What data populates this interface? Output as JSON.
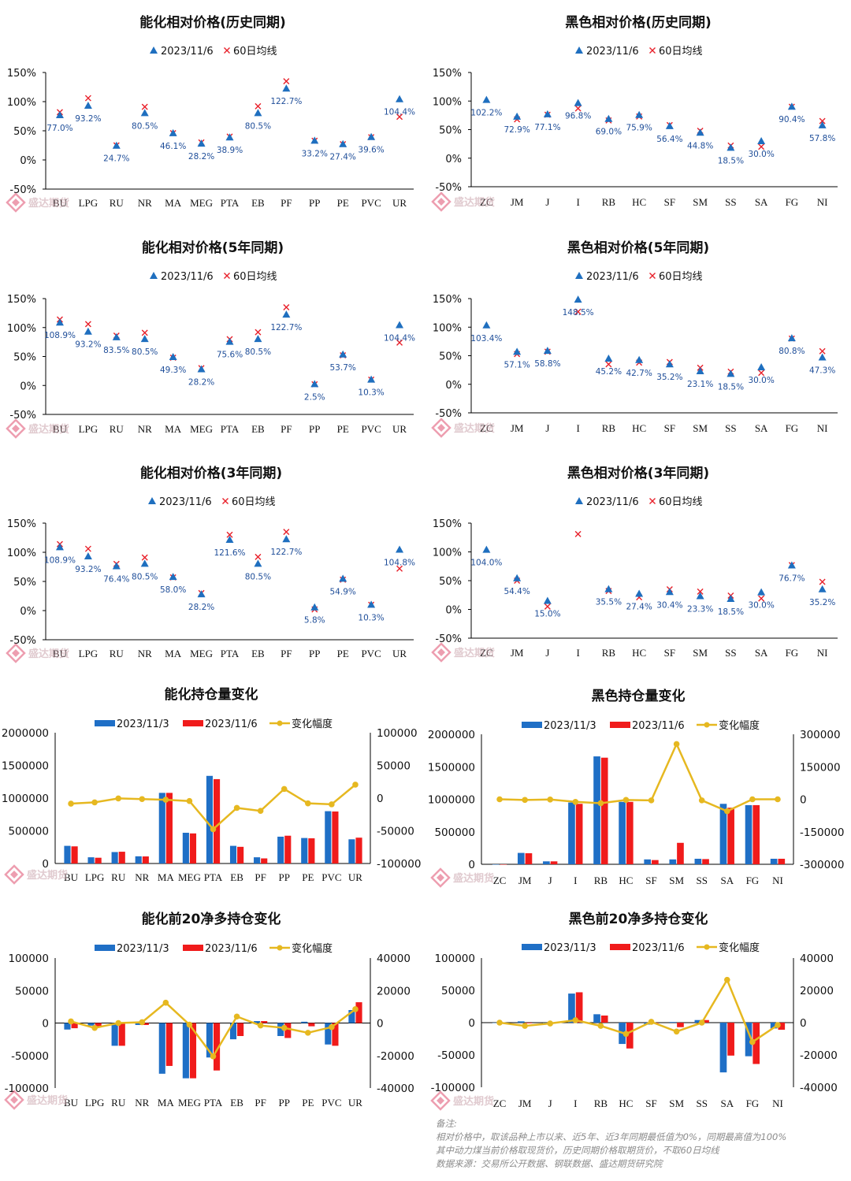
{
  "watermark": "盛达期货",
  "legend_markers": {
    "date_label": "2023/11/6",
    "avg_label": "60日均线"
  },
  "colors": {
    "triangle": "#1f6fbf",
    "cross": "#e8202a",
    "blue_bar": "#1f6fc6",
    "red_bar": "#f01b1b",
    "line": "#e6b820",
    "axis": "#000000",
    "label": "#1f4e99"
  },
  "chart_data": [
    {
      "type": "scatter",
      "title": "能化相对价格(历史同期)",
      "categories": [
        "BU",
        "LPG",
        "RU",
        "NR",
        "MA",
        "MEG",
        "PTA",
        "EB",
        "PF",
        "PP",
        "PE",
        "PVC",
        "UR"
      ],
      "series": [
        {
          "name": "2023/11/6",
          "values": [
            77.0,
            93.2,
            24.7,
            80.5,
            46.1,
            28.2,
            38.9,
            80.5,
            122.7,
            33.2,
            27.4,
            39.6,
            104.4
          ],
          "labels": [
            "77.0%",
            "93.2%",
            "24.7%",
            "80.5%",
            "46.1%",
            "28.2%",
            "38.9%",
            "80.5%",
            "122.7%",
            "33.2%",
            "27.4%",
            "39.6%",
            "104.4%"
          ]
        },
        {
          "name": "60日均线",
          "values": [
            82,
            106,
            25,
            91,
            46,
            30,
            40,
            92,
            135,
            33,
            27,
            39,
            74
          ]
        }
      ],
      "yticks": [
        "150%",
        "100%",
        "50%",
        "0%",
        "-50%"
      ],
      "ylim": [
        -50,
        150
      ]
    },
    {
      "type": "scatter",
      "title": "黑色相对价格(历史同期)",
      "categories": [
        "ZC",
        "JM",
        "J",
        "I",
        "RB",
        "HC",
        "SF",
        "SM",
        "SS",
        "SA",
        "FG",
        "NI"
      ],
      "series": [
        {
          "name": "2023/11/6",
          "values": [
            102.2,
            72.9,
            77.1,
            96.8,
            69.0,
            75.9,
            56.4,
            44.8,
            18.5,
            30.0,
            90.4,
            57.8
          ],
          "labels": [
            "102.2%",
            "72.9%",
            "77.1%",
            "96.8%",
            "69.0%",
            "75.9%",
            "56.4%",
            "44.8%",
            "18.5%",
            "30.0%",
            "90.4%",
            "57.8%"
          ]
        },
        {
          "name": "60日均线",
          "values": [
            null,
            68,
            76,
            87,
            66,
            73,
            58,
            48,
            22,
            20,
            90,
            65
          ]
        }
      ],
      "yticks": [
        "150%",
        "100%",
        "50%",
        "0%",
        "-50%"
      ],
      "ylim": [
        -50,
        150
      ]
    },
    {
      "type": "scatter",
      "title": "能化相对价格(5年同期)",
      "categories": [
        "BU",
        "LPG",
        "RU",
        "NR",
        "MA",
        "MEG",
        "PTA",
        "EB",
        "PF",
        "PP",
        "PE",
        "PVC",
        "UR"
      ],
      "series": [
        {
          "name": "2023/11/6",
          "values": [
            108.9,
            93.2,
            83.5,
            80.5,
            49.3,
            28.2,
            75.6,
            80.5,
            122.7,
            2.5,
            53.7,
            10.3,
            104.4
          ],
          "labels": [
            "108.9%",
            "93.2%",
            "83.5%",
            "80.5%",
            "49.3%",
            "28.2%",
            "75.6%",
            "80.5%",
            "122.7%",
            "2.5%",
            "53.7%",
            "10.3%",
            "104.4%"
          ]
        },
        {
          "name": "60日均线",
          "values": [
            114,
            106,
            86,
            91,
            48,
            30,
            80,
            92,
            135,
            2,
            52,
            10,
            74
          ]
        }
      ],
      "yticks": [
        "150%",
        "100%",
        "50%",
        "0%",
        "-50%"
      ],
      "ylim": [
        -50,
        150
      ]
    },
    {
      "type": "scatter",
      "title": "黑色相对价格(5年同期)",
      "categories": [
        "ZC",
        "JM",
        "J",
        "I",
        "RB",
        "HC",
        "SF",
        "SM",
        "SS",
        "SA",
        "FG",
        "NI"
      ],
      "series": [
        {
          "name": "2023/11/6",
          "values": [
            103.4,
            57.1,
            58.8,
            148.5,
            45.2,
            42.7,
            35.2,
            23.1,
            18.5,
            30.0,
            80.8,
            47.3
          ],
          "labels": [
            "103.4%",
            "57.1%",
            "58.8%",
            "148.5%",
            "45.2%",
            "42.7%",
            "35.2%",
            "23.1%",
            "18.5%",
            "30.0%",
            "80.8%",
            "47.3%"
          ]
        },
        {
          "name": "60日均线",
          "values": [
            null,
            53,
            57,
            127,
            35,
            38,
            39,
            29,
            22,
            20,
            80,
            58
          ]
        }
      ],
      "yticks": [
        "150%",
        "100%",
        "50%",
        "0%",
        "-50%"
      ],
      "ylim": [
        -50,
        150
      ]
    },
    {
      "type": "scatter",
      "title": "能化相对价格(3年同期)",
      "categories": [
        "BU",
        "LPG",
        "RU",
        "NR",
        "MA",
        "MEG",
        "PTA",
        "EB",
        "PF",
        "PP",
        "PE",
        "PVC",
        "UR"
      ],
      "series": [
        {
          "name": "2023/11/6",
          "values": [
            108.9,
            93.2,
            76.4,
            80.5,
            58.0,
            28.2,
            121.6,
            80.5,
            122.7,
            5.8,
            54.9,
            10.3,
            104.8
          ],
          "labels": [
            "108.9%",
            "93.2%",
            "76.4%",
            "80.5%",
            "58.0%",
            "28.2%",
            "121.6%",
            "80.5%",
            "122.7%",
            "5.8%",
            "54.9%",
            "10.3%",
            "104.8%"
          ]
        },
        {
          "name": "60日均线",
          "values": [
            114,
            106,
            80,
            91,
            57,
            30,
            130,
            92,
            135,
            2,
            53,
            10,
            72
          ]
        }
      ],
      "yticks": [
        "150%",
        "100%",
        "50%",
        "0%",
        "-50%"
      ],
      "ylim": [
        -50,
        150
      ]
    },
    {
      "type": "scatter",
      "title": "黑色相对价格(3年同期)",
      "categories": [
        "ZC",
        "JM",
        "J",
        "I",
        "RB",
        "HC",
        "SF",
        "SM",
        "SS",
        "SA",
        "FG",
        "NI"
      ],
      "series": [
        {
          "name": "2023/11/6",
          "values": [
            104.0,
            54.4,
            15.0,
            null,
            35.5,
            27.4,
            30.4,
            23.3,
            18.5,
            30.0,
            76.7,
            35.2
          ],
          "labels": [
            "104.0%",
            "54.4%",
            "15.0%",
            "",
            "35.5%",
            "27.4%",
            "30.4%",
            "23.3%",
            "18.5%",
            "30.0%",
            "76.7%",
            "35.2%"
          ]
        },
        {
          "name": "60日均线",
          "values": [
            null,
            50,
            5,
            131,
            32,
            21,
            35,
            31,
            24,
            19,
            77,
            48
          ]
        }
      ],
      "yticks": [
        "150%",
        "100%",
        "50%",
        "0%",
        "-50%"
      ],
      "ylim": [
        -50,
        150
      ]
    },
    {
      "type": "bar",
      "title": "能化持仓量变化",
      "categories": [
        "BU",
        "LPG",
        "RU",
        "NR",
        "MA",
        "MEG",
        "PTA",
        "EB",
        "PF",
        "PP",
        "PE",
        "PVC",
        "UR"
      ],
      "series": [
        {
          "name": "2023/11/3",
          "values": [
            270000,
            95000,
            175000,
            110000,
            1080000,
            470000,
            1340000,
            270000,
            95000,
            410000,
            390000,
            800000,
            370000
          ]
        },
        {
          "name": "2023/11/6",
          "values": [
            262000,
            88000,
            180000,
            108000,
            1080000,
            460000,
            1290000,
            255000,
            78000,
            425000,
            385000,
            795000,
            395000
          ]
        },
        {
          "name": "变化幅度",
          "axis": "right",
          "values": [
            -8500,
            -6500,
            -500,
            -1500,
            -2500,
            -4500,
            -47500,
            -15000,
            -19500,
            14000,
            -8000,
            -9500,
            20500
          ]
        }
      ],
      "ylim_left": [
        0,
        2000000
      ],
      "yticks_left": [
        "2000000",
        "1500000",
        "1000000",
        "500000",
        "0"
      ],
      "ylim_right": [
        -100000,
        100000
      ],
      "yticks_right": [
        "100000",
        "50000",
        "0",
        "-50000",
        "-100000"
      ]
    },
    {
      "type": "bar",
      "title": "黑色持仓量变化",
      "categories": [
        "ZC",
        "JM",
        "J",
        "I",
        "RB",
        "HC",
        "SF",
        "SM",
        "SS",
        "SA",
        "FG",
        "NI"
      ],
      "series": [
        {
          "name": "2023/11/3",
          "values": [
            0,
            175000,
            45000,
            950000,
            1660000,
            960000,
            75000,
            75000,
            85000,
            930000,
            910000,
            85000
          ]
        },
        {
          "name": "2023/11/6",
          "values": [
            0,
            170000,
            45000,
            930000,
            1640000,
            960000,
            65000,
            330000,
            80000,
            870000,
            910000,
            85000
          ]
        },
        {
          "name": "变化幅度",
          "axis": "right",
          "values": [
            0,
            -3000,
            -1000,
            -12000,
            -18000,
            -3000,
            -5000,
            255000,
            -5000,
            -55000,
            0,
            0
          ]
        }
      ],
      "ylim_left": [
        0,
        2000000
      ],
      "yticks_left": [
        "2000000",
        "1500000",
        "1000000",
        "500000",
        "0"
      ],
      "ylim_right": [
        -300000,
        300000
      ],
      "yticks_right": [
        "300000",
        "150000",
        "0",
        "-150000",
        "-300000"
      ]
    },
    {
      "type": "bar",
      "title": "能化前20净多持仓变化",
      "categories": [
        "BU",
        "LPG",
        "RU",
        "NR",
        "MA",
        "MEG",
        "PTA",
        "EB",
        "PF",
        "PP",
        "PE",
        "PVC",
        "UR"
      ],
      "series": [
        {
          "name": "2023/11/3",
          "values": [
            -10000,
            -4000,
            -35000,
            -3000,
            -78000,
            -85000,
            -53000,
            -25000,
            3000,
            -20000,
            2000,
            -33000,
            20000
          ]
        },
        {
          "name": "2023/11/6",
          "values": [
            -8000,
            -5000,
            -35000,
            -3000,
            -66000,
            -85000,
            -73000,
            -20000,
            3000,
            -23000,
            -5000,
            -35000,
            32000
          ]
        },
        {
          "name": "变化幅度",
          "axis": "right",
          "values": [
            1000,
            -3000,
            0,
            500,
            12500,
            -1000,
            -20500,
            4000,
            -1500,
            -3000,
            -6000,
            -2500,
            8500
          ]
        }
      ],
      "ylim_left": [
        -100000,
        100000
      ],
      "yticks_left": [
        "100000",
        "50000",
        "0",
        "-50000",
        "-100000"
      ],
      "ylim_right": [
        -40000,
        40000
      ],
      "yticks_right": [
        "40000",
        "20000",
        "0",
        "-20000",
        "-40000"
      ]
    },
    {
      "type": "bar",
      "title": "黑色前20净多持仓变化",
      "categories": [
        "ZC",
        "JM",
        "J",
        "I",
        "RB",
        "HC",
        "SF",
        "SM",
        "SS",
        "SA",
        "FG",
        "NI"
      ],
      "series": [
        {
          "name": "2023/11/3",
          "values": [
            0,
            2000,
            0,
            45000,
            13000,
            -33000,
            -3000,
            1000,
            4000,
            -77000,
            -52000,
            -9000
          ]
        },
        {
          "name": "2023/11/6",
          "values": [
            0,
            -1000,
            0,
            47000,
            11000,
            -40000,
            -1000,
            -7000,
            4000,
            -51000,
            -64000,
            -11000
          ]
        },
        {
          "name": "变化幅度",
          "axis": "right",
          "values": [
            0,
            -2000,
            -500,
            1500,
            -2000,
            -7000,
            500,
            -5500,
            0,
            26500,
            -12000,
            -1500
          ]
        }
      ],
      "ylim_left": [
        -100000,
        100000
      ],
      "yticks_left": [
        "100000",
        "50000",
        "0",
        "-50000",
        "-100000"
      ],
      "ylim_right": [
        -40000,
        40000
      ],
      "yticks_right": [
        "40000",
        "20000",
        "0",
        "-20000",
        "-40000"
      ]
    }
  ],
  "notes": {
    "heading": "备注:",
    "line1": "相对价格中，取该品种上市以来、近5年、近3年同期最低值为0%，同期最高值为100%",
    "line2": "其中动力煤当前价格取现货价，历史同期价格取期货价，不取60日均线",
    "line3": "数据来源：交易所公开数据、钢联数据、盛达期货研究院"
  }
}
